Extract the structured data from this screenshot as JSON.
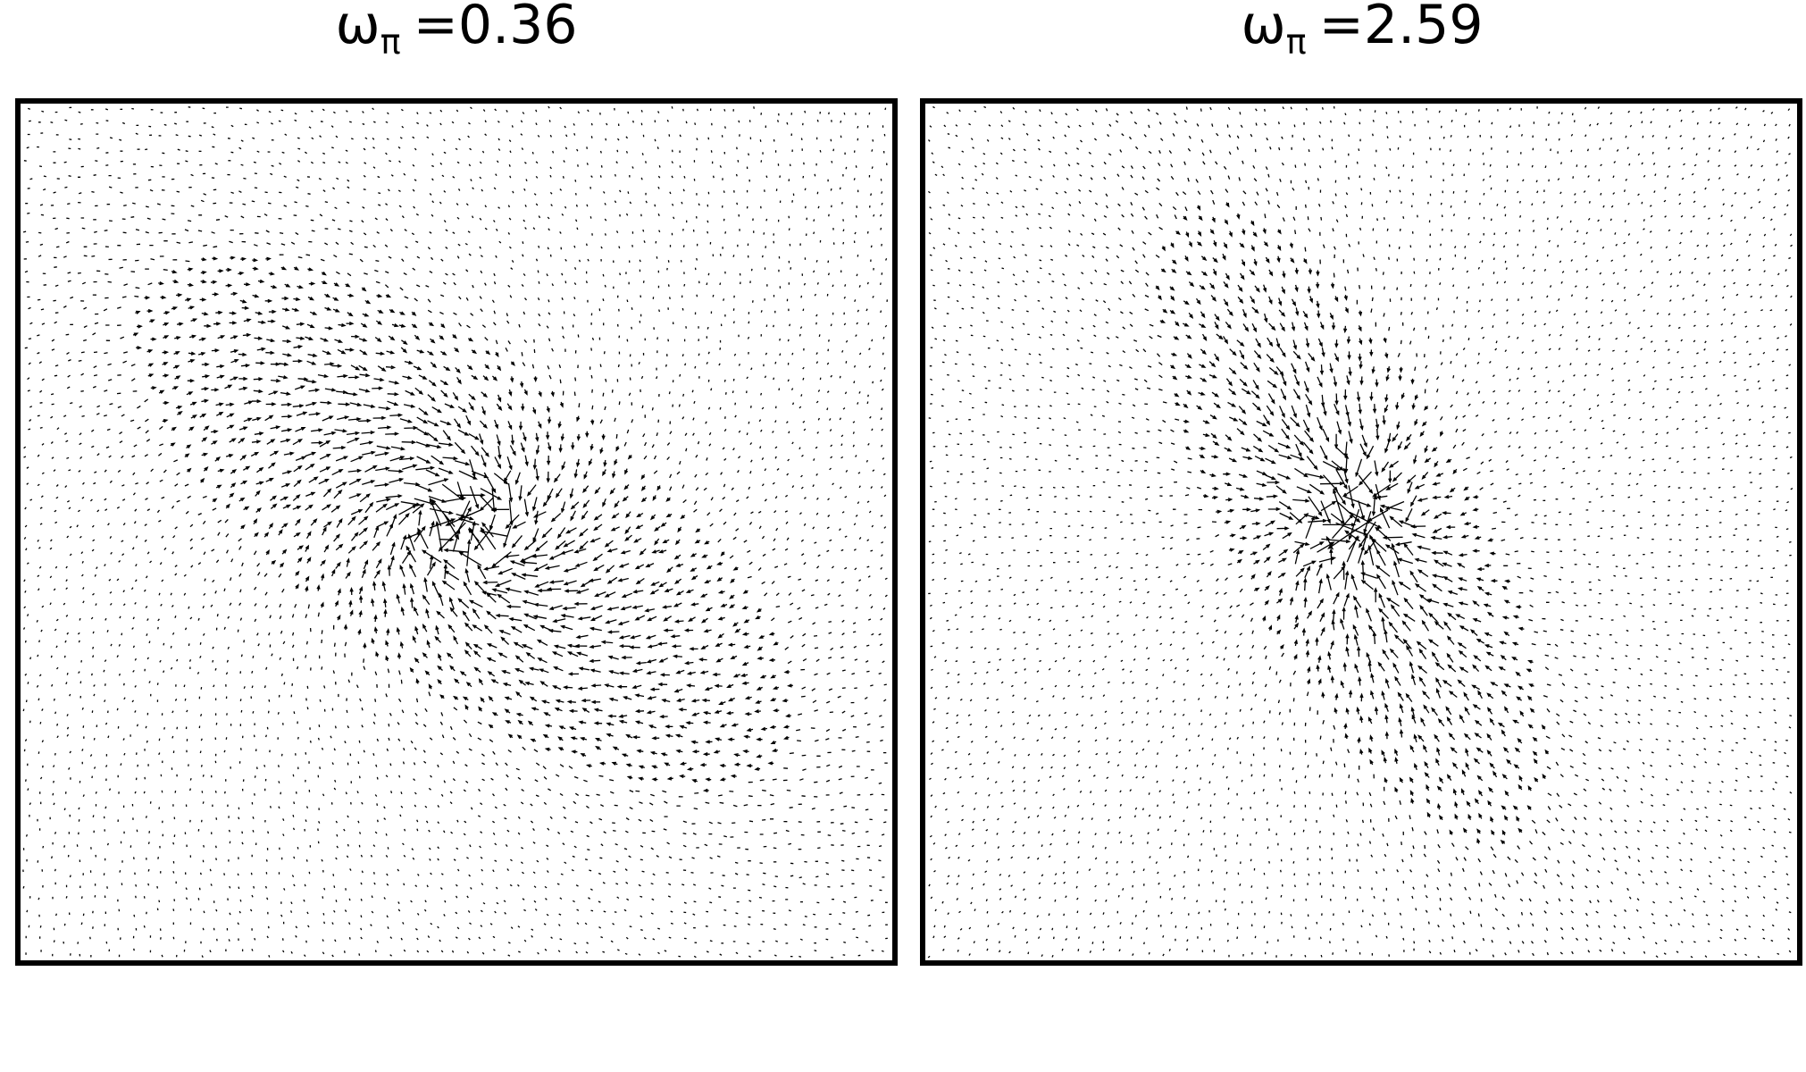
{
  "panels": [
    {
      "symbol": "ω",
      "subscript": "π",
      "text": "=0.36"
    },
    {
      "symbol": "ω",
      "subscript": "π",
      "text": "=2.59"
    }
  ]
}
